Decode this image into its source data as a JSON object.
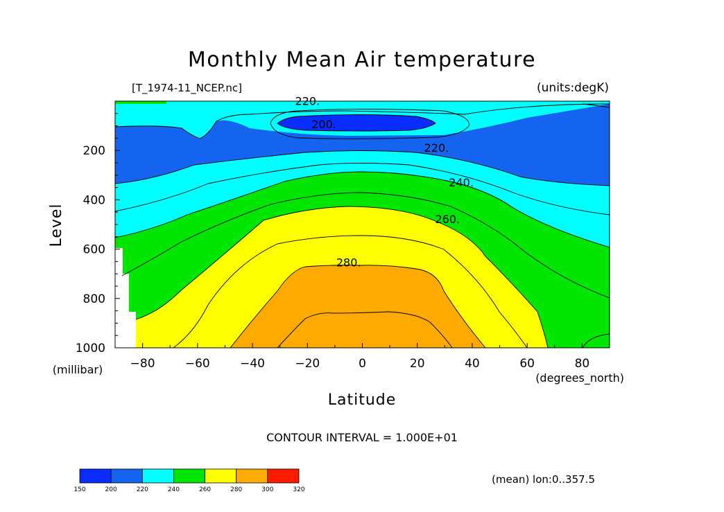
{
  "title": "Monthly Mean Air temperature",
  "file_label": "[T_1974-11_NCEP.nc]",
  "units_label": "(units:degK)",
  "contour_interval": "CONTOUR INTERVAL = 1.000E+01",
  "mean_label": "(mean) lon:0..357.5",
  "chart_data": {
    "type": "filled-contour",
    "title": "Monthly Mean Air temperature",
    "xlabel": "Latitude",
    "x_units": "(degrees_north)",
    "ylabel": "Level",
    "y_units": "(millibar)",
    "xlim": [
      -90,
      90
    ],
    "ylim": [
      1000,
      0
    ],
    "x_ticks": [
      "−80",
      "−60",
      "−40",
      "−20",
      "0",
      "20",
      "40",
      "60",
      "80"
    ],
    "x_tick_values": [
      -80,
      -60,
      -40,
      -20,
      0,
      20,
      40,
      60,
      80
    ],
    "y_ticks": [
      "200",
      "400",
      "600",
      "800",
      "1000"
    ],
    "y_tick_values": [
      200,
      400,
      600,
      800,
      1000
    ],
    "contour_labels": [
      {
        "text": "220.",
        "lat": -20,
        "lev": 15
      },
      {
        "text": "200.",
        "lat": -14,
        "lev": 110
      },
      {
        "text": "220.",
        "lat": 27,
        "lev": 205
      },
      {
        "text": "240.",
        "lat": 36,
        "lev": 345
      },
      {
        "text": "260.",
        "lat": 31,
        "lev": 495
      },
      {
        "text": "280.",
        "lat": -5,
        "lev": 670
      }
    ],
    "colorbar": {
      "bins": [
        {
          "from": 150,
          "to": 200,
          "color": "#0a2dff"
        },
        {
          "from": 200,
          "to": 220,
          "color": "#1464f0"
        },
        {
          "from": 220,
          "to": 240,
          "color": "#00ffff"
        },
        {
          "from": 240,
          "to": 260,
          "color": "#00e600"
        },
        {
          "from": 260,
          "to": 280,
          "color": "#ffff00"
        },
        {
          "from": 280,
          "to": 300,
          "color": "#ffaa00"
        },
        {
          "from": 300,
          "to": 320,
          "color": "#ff1a00"
        }
      ],
      "labels": [
        "150",
        "200",
        "220",
        "240",
        "260",
        "280",
        "300",
        "320"
      ]
    }
  }
}
